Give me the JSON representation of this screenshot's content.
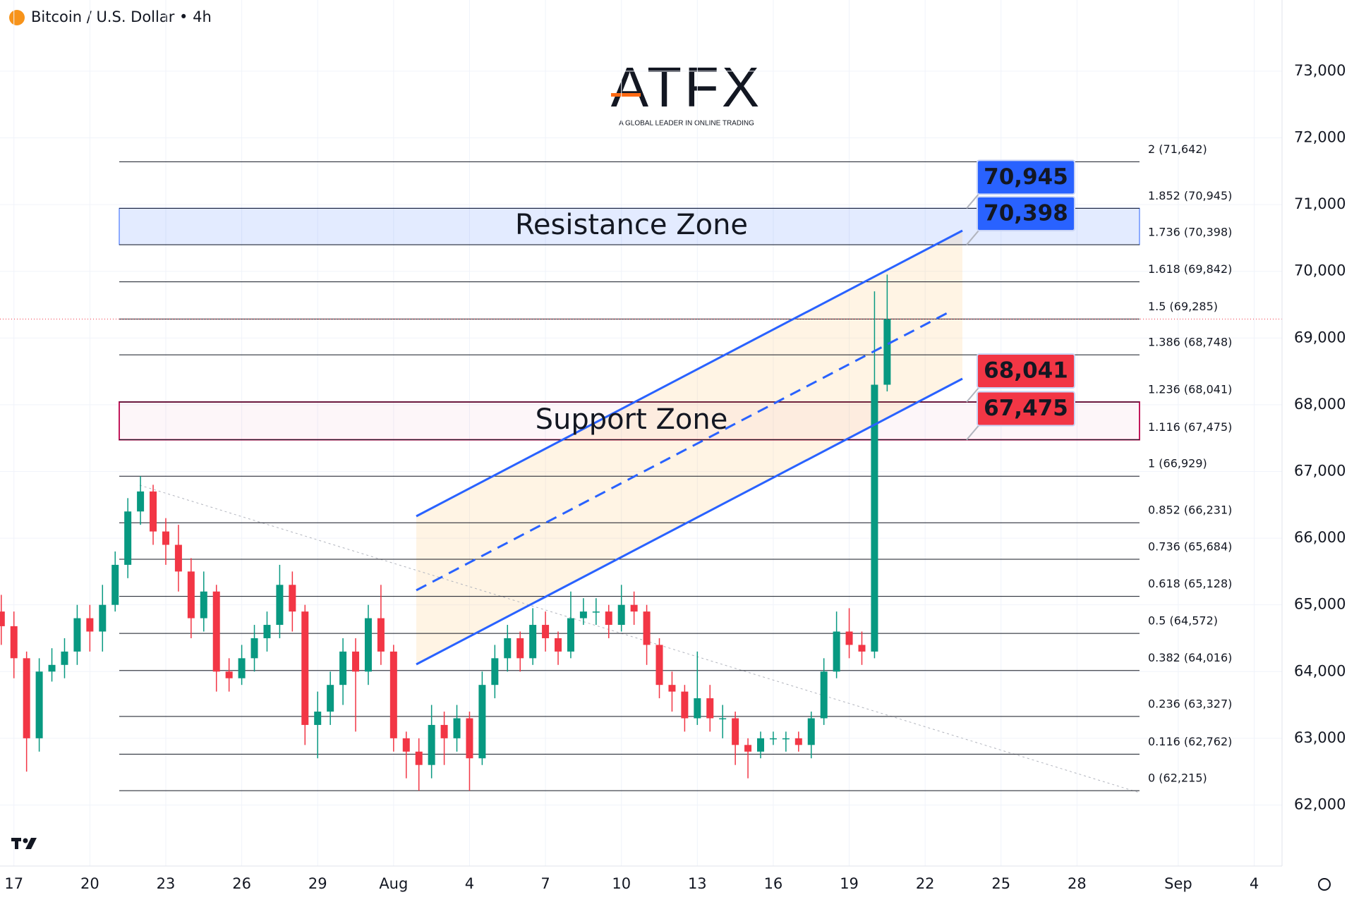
{
  "header": {
    "title": "Bitcoin / U.S. Dollar • 4h"
  },
  "logo": {
    "name": "ATFX",
    "tagline": "A GLOBAL LEADER IN ONLINE TRADING"
  },
  "chart_data": {
    "type": "candlestick",
    "colors": {
      "up": "#089981",
      "down": "#f23645"
    },
    "x": [
      -0.5,
      0,
      0.5,
      1,
      1.5,
      2,
      2.5,
      3,
      3.5,
      4,
      4.5,
      5,
      5.5,
      6,
      6.5,
      7,
      7.5,
      8,
      8.5,
      9,
      9.5,
      10,
      10.5,
      11,
      11.5,
      12,
      12.5,
      13,
      13.5,
      14,
      14.5,
      15,
      15.5,
      16,
      16.5,
      17,
      17.5,
      18,
      18.5,
      19,
      19.5,
      20,
      20.5,
      21,
      21.5,
      22,
      22.5,
      23,
      23.5,
      24,
      24.5,
      25,
      25.5,
      26,
      26.5,
      27,
      27.5,
      28,
      28.5,
      29,
      29.5,
      30,
      30.5,
      31,
      31.5,
      32,
      32.5,
      33,
      33.5,
      34,
      34.5
    ],
    "open": [
      64900,
      64680,
      64200,
      63000,
      64000,
      64100,
      64300,
      64800,
      64600,
      65000,
      65600,
      66400,
      66700,
      66100,
      65900,
      65500,
      64800,
      65200,
      64000,
      63900,
      64200,
      64500,
      64700,
      65300,
      64900,
      63200,
      63400,
      63800,
      64300,
      64000,
      64800,
      64300,
      63000,
      62800,
      62600,
      63200,
      63000,
      63300,
      62700,
      63800,
      64200,
      64500,
      64200,
      64700,
      64500,
      64300,
      64800,
      64900,
      64900,
      64700,
      65000,
      64900,
      64400,
      63800,
      63700,
      63300,
      63600,
      63300,
      63300,
      62900,
      62800,
      63000,
      63000,
      63000,
      62900,
      63300,
      64000,
      64600,
      64400,
      64300,
      68300
    ],
    "high": [
      65150,
      64900,
      64300,
      64200,
      64350,
      64500,
      65000,
      65000,
      65300,
      65800,
      66600,
      66930,
      66800,
      66300,
      66200,
      65700,
      65500,
      65300,
      64200,
      64400,
      64700,
      64900,
      65600,
      65500,
      65000,
      63700,
      64000,
      64500,
      64500,
      65000,
      65300,
      64400,
      63100,
      63000,
      63500,
      63400,
      63500,
      63400,
      64000,
      64400,
      64700,
      64600,
      64950,
      64900,
      64600,
      65200,
      65100,
      65100,
      65000,
      65300,
      65200,
      65000,
      64500,
      64000,
      63800,
      64300,
      63800,
      63500,
      63400,
      63000,
      63100,
      63100,
      63100,
      63100,
      63400,
      64200,
      64900,
      64950,
      64600,
      69700,
      69950
    ],
    "low": [
      64400,
      63900,
      62500,
      62800,
      63850,
      63900,
      64100,
      64300,
      64300,
      64900,
      65400,
      66200,
      65900,
      65600,
      65200,
      64500,
      64600,
      63700,
      63700,
      63800,
      64000,
      64300,
      64500,
      64600,
      62900,
      62700,
      63200,
      63500,
      63100,
      63800,
      64100,
      62800,
      62400,
      62215,
      62400,
      62600,
      62800,
      62215,
      62600,
      63600,
      64000,
      64000,
      64100,
      64300,
      64100,
      64200,
      64700,
      64700,
      64500,
      64600,
      64700,
      64100,
      63600,
      63400,
      63100,
      63200,
      63100,
      63000,
      62600,
      62400,
      62700,
      62900,
      62800,
      62800,
      62700,
      63200,
      63900,
      64200,
      64100,
      64200,
      68200
    ],
    "close": [
      64680,
      64200,
      63000,
      64000,
      64100,
      64300,
      64800,
      64600,
      65000,
      65600,
      66400,
      66700,
      66100,
      65900,
      65500,
      64800,
      65200,
      64000,
      63900,
      64200,
      64500,
      64700,
      65300,
      64900,
      63200,
      63400,
      63800,
      64300,
      64000,
      64800,
      64300,
      63000,
      62800,
      62600,
      63200,
      63000,
      63300,
      62700,
      63800,
      64200,
      64500,
      64200,
      64700,
      64500,
      64300,
      64800,
      64900,
      64900,
      64700,
      65000,
      64900,
      64400,
      63800,
      63700,
      63300,
      63600,
      63300,
      63300,
      62900,
      62800,
      63000,
      63000,
      63000,
      62900,
      63300,
      64000,
      64600,
      64400,
      64300,
      68300,
      69285
    ],
    "xlim": [
      -0.55,
      50.1
    ],
    "xticks": [
      {
        "value": 0,
        "label": "17"
      },
      {
        "value": 3,
        "label": "20"
      },
      {
        "value": 6,
        "label": "23"
      },
      {
        "value": 9,
        "label": "26"
      },
      {
        "value": 12,
        "label": "29"
      },
      {
        "value": 15,
        "label": "Aug"
      },
      {
        "value": 18,
        "label": "4"
      },
      {
        "value": 21,
        "label": "7"
      },
      {
        "value": 24,
        "label": "10"
      },
      {
        "value": 27,
        "label": "13"
      },
      {
        "value": 30,
        "label": "16"
      },
      {
        "value": 33,
        "label": "19"
      },
      {
        "value": 36,
        "label": "22"
      },
      {
        "value": 39,
        "label": "25"
      },
      {
        "value": 42,
        "label": "28"
      },
      {
        "value": 46,
        "label": "Sep"
      },
      {
        "value": 49,
        "label": "4"
      }
    ],
    "ylim": [
      61085,
      74067
    ],
    "yticks": [
      {
        "value": 62000,
        "label": "62,000"
      },
      {
        "value": 63000,
        "label": "63,000"
      },
      {
        "value": 64000,
        "label": "64,000"
      },
      {
        "value": 65000,
        "label": "65,000"
      },
      {
        "value": 66000,
        "label": "66,000"
      },
      {
        "value": 67000,
        "label": "67,000"
      },
      {
        "value": 68000,
        "label": "68,000"
      },
      {
        "value": 69000,
        "label": "69,000"
      },
      {
        "value": 70000,
        "label": "70,000"
      },
      {
        "value": 71000,
        "label": "71,000"
      },
      {
        "value": 72000,
        "label": "72,000"
      },
      {
        "value": 73000,
        "label": "73,000"
      }
    ],
    "fib_levels": [
      {
        "value": 71642,
        "label": "2 (71,642)"
      },
      {
        "value": 70945,
        "label": "1.852 (70,945)"
      },
      {
        "value": 70398,
        "label": "1.736 (70,398)"
      },
      {
        "value": 69842,
        "label": "1.618 (69,842)"
      },
      {
        "value": 69285,
        "label": "1.5 (69,285)"
      },
      {
        "value": 68748,
        "label": "1.386 (68,748)"
      },
      {
        "value": 68041,
        "label": "1.236 (68,041)"
      },
      {
        "value": 67475,
        "label": "1.116 (67,475)"
      },
      {
        "value": 66929,
        "label": "1 (66,929)"
      },
      {
        "value": 66231,
        "label": "0.852 (66,231)"
      },
      {
        "value": 65684,
        "label": "0.736 (65,684)"
      },
      {
        "value": 65128,
        "label": "0.618 (65,128)"
      },
      {
        "value": 64572,
        "label": "0.5 (64,572)"
      },
      {
        "value": 64016,
        "label": "0.382 (64,016)"
      },
      {
        "value": 63327,
        "label": "0.236 (63,327)"
      },
      {
        "value": 62762,
        "label": "0.116 (62,762)"
      },
      {
        "value": 62215,
        "label": "0 (62,215)"
      }
    ],
    "zones": [
      {
        "label": "Resistance Zone",
        "low": 70398,
        "high": 70945,
        "color": "#2962ff"
      },
      {
        "label": "Support Zone",
        "low": 67475,
        "high": 68041,
        "color": "#c2185b"
      }
    ],
    "price_labels": {
      "values": [
        70945,
        70398,
        68041,
        67475
      ],
      "value_labels": [
        "70,945",
        "70,398",
        "68,041",
        "67,475"
      ],
      "colors": [
        "#2962ff",
        "#2962ff",
        "#f23645",
        "#f23645"
      ]
    }
  }
}
